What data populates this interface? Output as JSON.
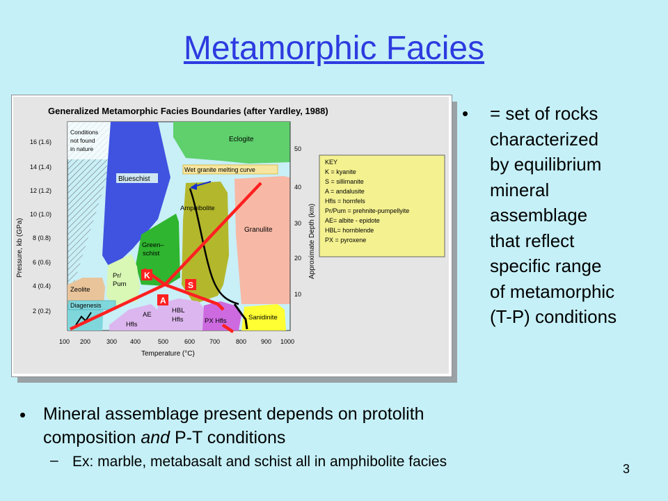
{
  "slide": {
    "title": "Metamorphic Facies",
    "page_number": "3"
  },
  "figure": {
    "title": "Generalized Metamorphic Facies Boundaries (after Yardley, 1988)",
    "x_axis_label": "Temperature (°C)",
    "y_axis_left_label": "Pressure, kb (GPa)",
    "y_axis_right_label": "Approximate Depth (km)",
    "x_ticks": [
      "100",
      "200",
      "300",
      "400",
      "500",
      "600",
      "700",
      "800",
      "900",
      "1000"
    ],
    "y_left_ticks": [
      "2 (0.2)",
      "4 (0.4)",
      "6 (0.6)",
      "8 (0.8)",
      "10 (1.0)",
      "12 (1.2)",
      "14 (1.4)",
      "16 (1.6)"
    ],
    "y_right_ticks": [
      "10",
      "20",
      "30",
      "40",
      "50"
    ],
    "facies": {
      "not_found": [
        "Conditions",
        "not found",
        "in nature"
      ],
      "blueschist": "Blueschist",
      "eclogite": "Eclogite",
      "wet_granite": "Wet granite melting curve",
      "amphibolite": "Amphibolite",
      "granulite": "Granulite",
      "greenschist": [
        "Green–",
        "schist"
      ],
      "prpum": [
        "Pr/",
        "Pum"
      ],
      "zeolite": "Zeolite",
      "diagenesis": "Diagenesis",
      "ae_hfls": [
        "AE",
        "Hfls"
      ],
      "hbl_hfls": [
        "HBL",
        "Hfls"
      ],
      "px_hfls": "PX Hfls",
      "sanidinite": "Sanidinite"
    },
    "markers": {
      "k": "K",
      "s": "S",
      "a": "A"
    },
    "key": {
      "heading": "KEY",
      "items": [
        "K = kyanite",
        "S = sillimanite",
        "A = andalusite",
        "Hfls = hornfels",
        "Pr/Pum = prehnite-pumpellyite",
        "AE= albite - epidote",
        "HBL= hornblende",
        "PX = pyroxene"
      ]
    },
    "colors": {
      "blueschist": "#3f53e0",
      "eclogite": "#5fd06c",
      "amphibolite": "#b3b72c",
      "granulite": "#f7b9a6",
      "greenschist": "#2fb52f",
      "prpum": "#d9f7b5",
      "zeolite": "#e9c49a",
      "hornfels": "#dcb6ee",
      "px_hfls": "#cd6ae0",
      "sanidinite": "#ffff33",
      "diagenesis": "#7fd7dc",
      "key_bg": "#f4f190",
      "plot_bg": "#c9eff7",
      "frame_bg": "#e5e5e5",
      "aluminosilicate": "#ff2020"
    }
  },
  "right_bullet": {
    "lines": [
      "= set of rocks",
      "characterized",
      "by equilibrium",
      "mineral",
      "assemblage",
      "that reflect",
      "specific range",
      "of metamorphic",
      "(T-P) conditions"
    ]
  },
  "bottom_bullet": {
    "line1": "Mineral assemblage present depends on protolith",
    "line2_pre": "composition ",
    "line2_em": "and",
    "line2_post": " P-T conditions",
    "sub": "Ex: marble, metabasalt and schist all in amphibolite facies"
  }
}
